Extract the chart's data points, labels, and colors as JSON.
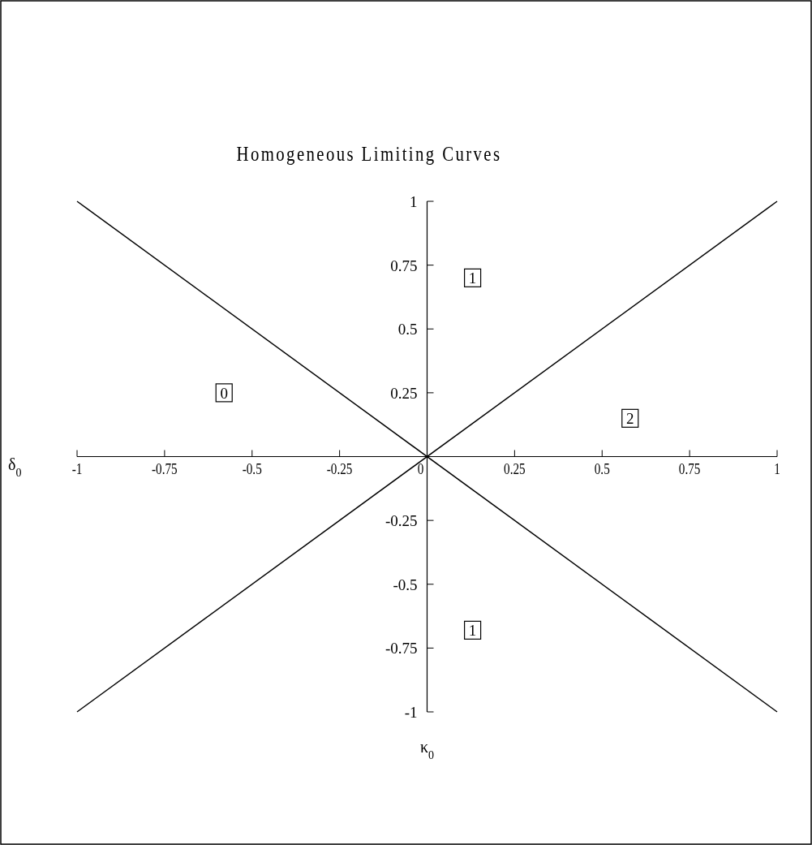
{
  "chart_data": {
    "type": "line",
    "title": "Homogeneous Limiting Curves",
    "xlabel": "κ$_{0}$",
    "ylabel": "δ$_{0}$",
    "x": [
      -1,
      1
    ],
    "series": [
      {
        "color": "#000000",
        "values": [
          1,
          -1
        ]
      },
      {
        "color": "#000000",
        "values": [
          -1,
          1
        ]
      }
    ],
    "xlim": [
      -1,
      1
    ],
    "ylim": [
      -1,
      1
    ],
    "xticks": [
      -1,
      -0.75,
      -0.5,
      -0.25,
      0,
      0.25,
      0.5,
      0.75,
      1
    ],
    "yticks": [
      -1,
      -0.75,
      -0.5,
      -0.25,
      0.25,
      0.5,
      0.75,
      1
    ],
    "annotations": [
      {
        "text": "0",
        "x": -0.58,
        "y": 0.25
      },
      {
        "text": "1",
        "x": 0.13,
        "y": 0.7
      },
      {
        "text": "2",
        "x": 0.58,
        "y": 0.15
      },
      {
        "text": "1",
        "x": 0.13,
        "y": -0.68
      }
    ],
    "grid": false,
    "marker": "none",
    "line_style": "solid"
  }
}
